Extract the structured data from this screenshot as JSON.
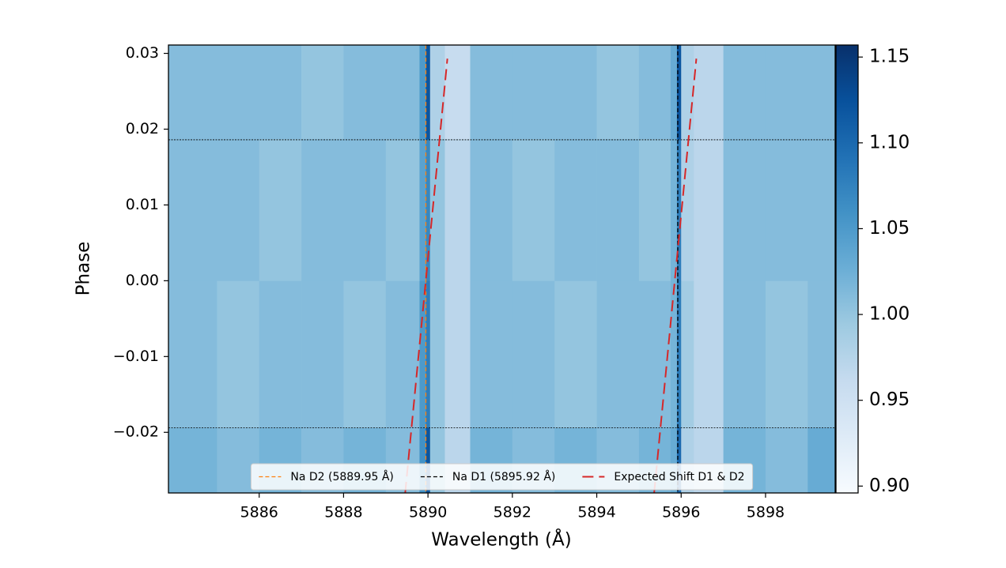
{
  "chart_data": {
    "type": "heatmap",
    "xlabel": "Wavelength (Å)",
    "ylabel": "Phase",
    "xlim": [
      5883.85,
      5899.65
    ],
    "ylim": [
      -0.028,
      0.0311
    ],
    "xticks": [
      5886,
      5888,
      5890,
      5892,
      5894,
      5896,
      5898
    ],
    "yticks": [
      {
        "value": -0.02,
        "label": "−0.02"
      },
      {
        "value": -0.01,
        "label": "−0.01"
      },
      {
        "value": 0,
        "label": "0.00"
      },
      0.01,
      0.02,
      0.03
    ],
    "colormap": "Blues",
    "clim": [
      0.896,
      1.157
    ],
    "cticks": [
      {
        "value": 0.9,
        "label": "0.90"
      },
      0.95,
      {
        "value": 1,
        "label": "1.00"
      },
      1.05,
      {
        "value": 1.1,
        "label": "1.10"
      },
      1.15
    ],
    "x_edges": [
      5883.85,
      5885,
      5886,
      5887,
      5888,
      5889,
      5889.8,
      5889.95,
      5890.05,
      5890.4,
      5891,
      5892,
      5893,
      5894,
      5895,
      5895.75,
      5895.9,
      5896.0,
      5896.3,
      5897,
      5898,
      5899,
      5899.65
    ],
    "y_edges": [
      -0.028,
      -0.0194,
      0,
      0.0187,
      0.0311
    ],
    "z": [
      [
        1.02,
        1.01,
        1.02,
        1.01,
        1.02,
        1.01,
        1.06,
        1.12,
        1.0,
        0.97,
        1.02,
        1.01,
        1.02,
        1.01,
        1.02,
        1.03,
        1.1,
        0.98,
        0.97,
        1.02,
        1.01,
        1.03
      ],
      [
        1.01,
        1.0,
        1.01,
        1.01,
        1.0,
        1.01,
        1.05,
        1.08,
        1.0,
        0.97,
        1.01,
        1.01,
        1.0,
        1.01,
        1.01,
        1.02,
        1.08,
        0.99,
        0.97,
        1.01,
        1.0,
        1.01
      ],
      [
        1.01,
        1.01,
        1.0,
        1.01,
        1.01,
        1.0,
        1.04,
        1.07,
        1.0,
        0.97,
        1.01,
        1.0,
        1.01,
        1.01,
        1.0,
        1.02,
        1.08,
        0.98,
        0.97,
        1.01,
        1.01,
        1.01
      ],
      [
        1.01,
        1.01,
        1.01,
        1.0,
        1.01,
        1.01,
        1.05,
        1.12,
        0.98,
        0.96,
        1.01,
        1.01,
        1.01,
        1.0,
        1.01,
        1.03,
        1.12,
        0.98,
        0.97,
        1.01,
        1.01,
        1.01
      ]
    ],
    "hlines": [
      0.0186,
      -0.0194
    ],
    "vlines": [
      {
        "name": "Na D2 (5889.95 Å)",
        "color": "#ff7f0e",
        "x": 5889.95
      },
      {
        "name": "Na D1 (5895.92 Å)",
        "color": "#000000",
        "x": 5895.92
      }
    ],
    "series": [
      {
        "name": "Expected Shift D1 & D2",
        "color": "#d62728",
        "x": [
          5889.46,
          5890.46,
          null,
          5895.36,
          5896.36
        ],
        "y": [
          -0.028,
          0.0293,
          null,
          -0.028,
          0.0293
        ]
      }
    ],
    "legend": "lower center"
  }
}
